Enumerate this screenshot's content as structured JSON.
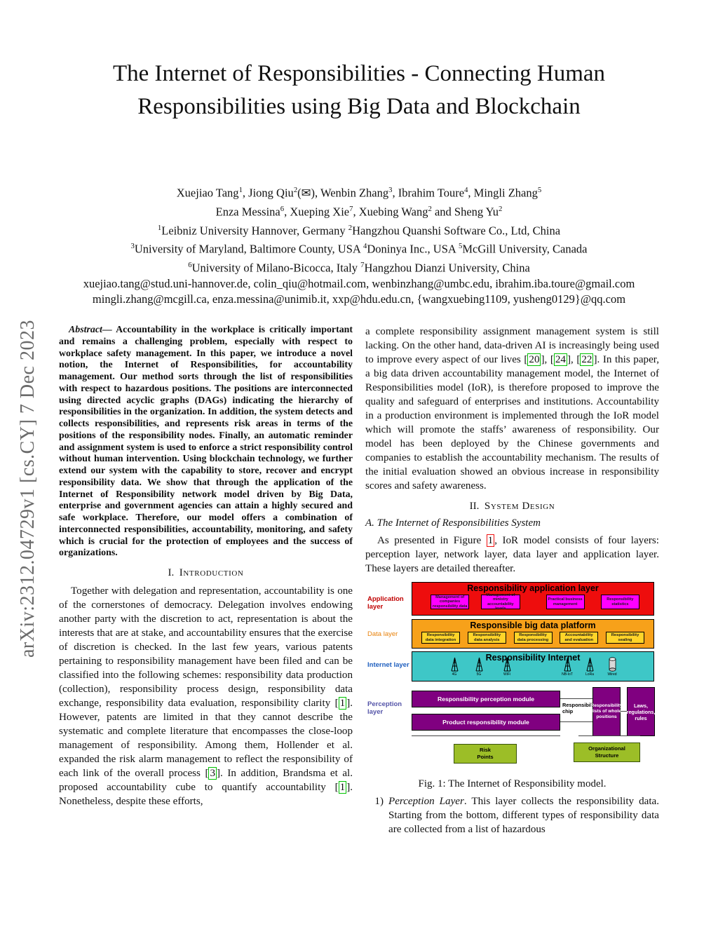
{
  "sidebar": {
    "arxiv_id": "arXiv:2312.04729v1  [cs.CY]  7 Dec 2023"
  },
  "header": {
    "title": "The Internet of Responsibilities - Connecting Human Responsibilities using Big Data and Blockchain",
    "author_line1": [
      {
        "text": "Xuejiao Tang"
      },
      {
        "sup": "1"
      },
      {
        "text": ", Jiong Qiu"
      },
      {
        "sup": "2"
      },
      {
        "text": "(✉), Wenbin Zhang"
      },
      {
        "sup": "3"
      },
      {
        "text": ", Ibrahim Toure"
      },
      {
        "sup": "4"
      },
      {
        "text": ", Mingli Zhang"
      },
      {
        "sup": "5"
      }
    ],
    "author_line2": [
      {
        "text": "Enza Messina"
      },
      {
        "sup": "6"
      },
      {
        "text": ", Xueping Xie"
      },
      {
        "sup": "7"
      },
      {
        "text": ", Xuebing Wang"
      },
      {
        "sup": "2"
      },
      {
        "text": " and Sheng Yu"
      },
      {
        "sup": "2"
      }
    ],
    "affil_line1": [
      {
        "sup": "1"
      },
      {
        "text": "Leibniz University Hannover, Germany "
      },
      {
        "sup": "2"
      },
      {
        "text": "Hangzhou Quanshi Software Co., Ltd, China"
      }
    ],
    "affil_line2": [
      {
        "sup": "3"
      },
      {
        "text": "University of Maryland, Baltimore County, USA "
      },
      {
        "sup": "4"
      },
      {
        "text": "Doninya Inc., USA "
      },
      {
        "sup": "5"
      },
      {
        "text": "McGill University, Canada"
      }
    ],
    "affil_line3": [
      {
        "sup": "6"
      },
      {
        "text": "University of Milano-Bicocca, Italy "
      },
      {
        "sup": "7"
      },
      {
        "text": "Hangzhou Dianzi University, China"
      }
    ],
    "email_line1": "xuejiao.tang@stud.uni-hannover.de, colin_qiu@hotmail.com, wenbinzhang@umbc.edu, ibrahim.iba.toure@gmail.com",
    "email_line2": "mingli.zhang@mcgill.ca, enza.messina@unimib.it, xxp@hdu.edu.cn, {wangxuebing1109, yusheng0129}@qq.com"
  },
  "abstract": {
    "label": "Abstract—",
    "text": " Accountability in the workplace is critically important and remains a challenging problem, especially with respect to workplace safety management. In this paper, we introduce a novel notion, the Internet of Responsibilities, for accountability management. Our method sorts through the list of responsibilities with respect to hazardous positions. The positions are interconnected using directed acyclic graphs (DAGs) indicating the hierarchy of responsibilities in the organization. In addition, the system detects and collects responsibilities, and represents risk areas in terms of the positions of the responsibility nodes. Finally, an automatic reminder and assignment system is used to enforce a strict responsibility control without human intervention. Using blockchain technology, we further extend our system with the capability to store, recover and encrypt responsibility data. We show that through the application of the Internet of Responsibility network model driven by Big Data, enterprise and government agencies can attain a highly secured and safe workplace. Therefore, our model offers a combination of interconnected responsibilities, accountability, monitoring, and safety which is crucial for the protection of employees and the success of organizations."
  },
  "sections": {
    "intro_heading": {
      "num": "I.",
      "title": "Introduction"
    },
    "intro_para": [
      {
        "text": "Together with delegation and representation, accountability is one of the cornerstones of democracy. Delegation involves endowing another party with the discretion to act, representation is about the interests that are at stake, and accountability ensures that the exercise of discretion is checked. In the last few years, various patents pertaining to responsibility management have been filed and can be classified into the following schemes: responsibility data production (collection), responsibility process design, responsibility data exchange, responsibility data evaluation, responsibility clarity "
      },
      {
        "cite": "1"
      },
      {
        "text": ". However, patents are limited in that they cannot describe the systematic and complete literature that encompasses the close-loop management of responsibility. Among them, Hollender et al. expanded the risk alarm management to reflect the responsibility of each link of the overall process "
      },
      {
        "cite": "3"
      },
      {
        "text": ". In addition, Brandsma et al. proposed accountability cube to quantify accountability "
      },
      {
        "cite": "1"
      },
      {
        "text": ". Nonetheless, despite these efforts,"
      }
    ],
    "right_para": [
      {
        "text": "a complete responsibility assignment management system is still lacking. On the other hand, data-driven AI is increasingly being used to improve every aspect of our lives "
      },
      {
        "cite": "20"
      },
      {
        "text": ", "
      },
      {
        "cite": "24"
      },
      {
        "text": ", "
      },
      {
        "cite": "22"
      },
      {
        "text": ". In this paper, a big data driven accountability management model, the Internet of Responsibilities model (IoR), is therefore proposed to improve the quality and safeguard of enterprises and institutions. Accountability in a production environment is implemented through the IoR model which will promote the staffs’ awareness of responsibility. Our model has been deployed by the Chinese governments and companies to establish the accountability mechanism. The results of the initial evaluation showed an obvious increase in responsibility scores and safety awareness."
      }
    ],
    "design_heading": {
      "num": "II.",
      "title": "System Design"
    },
    "subsection_a": "A. The Internet of Responsibilities System",
    "figure_intro": [
      {
        "text": "As presented in Figure "
      },
      {
        "ref": "1"
      },
      {
        "text": ", IoR model consists of four layers: perception layer, network layer, data layer and application layer. These layers are detailed thereafter."
      }
    ],
    "list_item1": {
      "num": "1)",
      "segments": [
        {
          "i": "Perception Layer"
        },
        {
          "text": ". This layer collects the responsibility data. Starting from the bottom, different types of responsibility data are collected from a list of hazardous"
        }
      ]
    }
  },
  "figure": {
    "caption": "Fig. 1: The Internet of Responsibility model.",
    "colors": {
      "application_red": "#ee0d0d",
      "module_magenta": "#ff00ff",
      "data_orange": "#f7a11a",
      "data_yellow": "#ffd429",
      "internet_teal": "#3ec7c7",
      "perception_purple": "#800080",
      "bottom_green": "#9cbe27"
    },
    "layer_labels": [
      {
        "text": "Application layer"
      },
      {
        "text": "Data layer"
      },
      {
        "text": "Internet layer"
      },
      {
        "text": "Perception layer"
      }
    ],
    "application": {
      "title": "Responsibility application layer",
      "boxes": [
        "Management of companies responsibility data",
        "Management of ministry accountability levels",
        "Practical business management",
        "Responsibility statistics"
      ]
    },
    "data": {
      "title": "Responsible big data platform",
      "boxes": [
        "Responsibility data integration",
        "Responsibility data analysis",
        "Responsibility data processing",
        "Accountability and evaluation",
        "Responsibility sealing"
      ]
    },
    "internet": {
      "title": "Responsibility Internet",
      "nodes": [
        "4G",
        "5G",
        "WiFi",
        "NB-IoT",
        "LoRa",
        "Wired"
      ]
    },
    "perception": {
      "module1": "Responsibility perception module",
      "module2": "Product responsibility module",
      "chip": "Responsibility chip",
      "lists": "Responsibility lists of whole positions",
      "laws": "Laws, regulations, rules"
    },
    "bottom": {
      "risk": "Risk\nPoints",
      "org": "Organizational\nStructure"
    }
  }
}
